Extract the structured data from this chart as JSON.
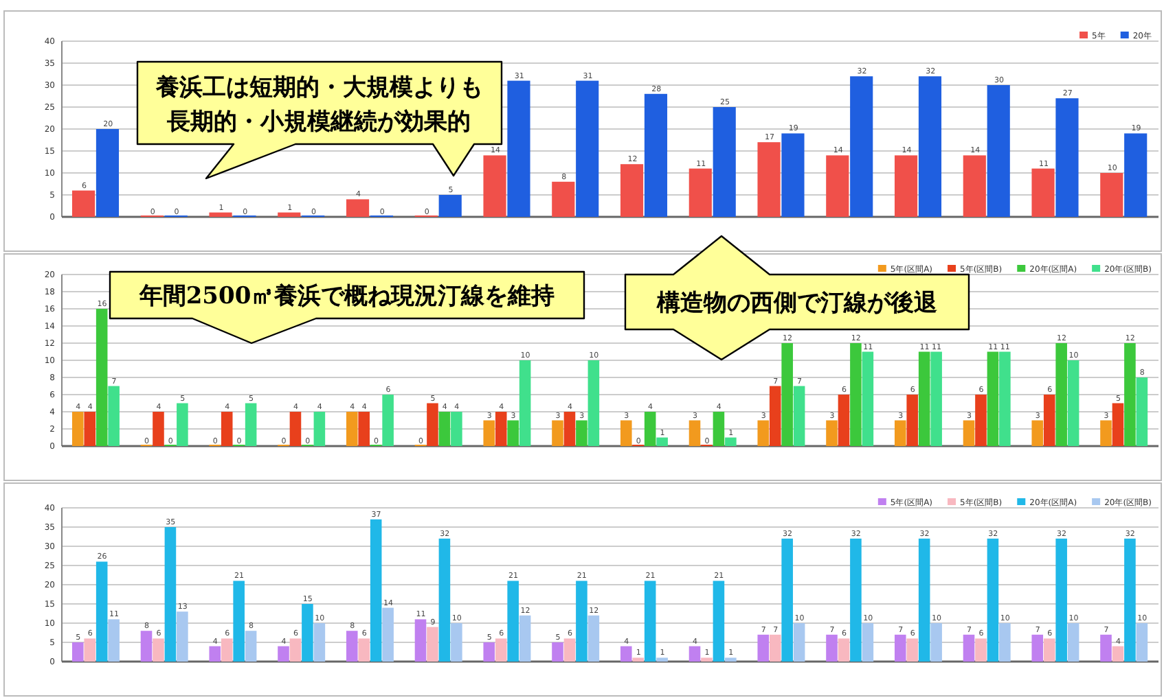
{
  "chart_data": [
    {
      "type": "bar",
      "categories": [
        null,
        null,
        null,
        null,
        null,
        null,
        null,
        null,
        null,
        null,
        null,
        null,
        null,
        null,
        null,
        null
      ],
      "ylim": [
        0,
        40
      ],
      "yticks": [
        0,
        5,
        10,
        15,
        20,
        25,
        30,
        35,
        40
      ],
      "grid": "y",
      "legend": "top right",
      "data_labels": true,
      "series": [
        {
          "name": "5年",
          "color": "#f0504a",
          "values": [
            6,
            0,
            1,
            1,
            4,
            0,
            14,
            8,
            12,
            11,
            17,
            14,
            14,
            14,
            11,
            10
          ]
        },
        {
          "name": "20年",
          "color": "#1f5fe0",
          "values": [
            20,
            0,
            0,
            0,
            0,
            5,
            31,
            31,
            28,
            25,
            19,
            32,
            32,
            30,
            27,
            19
          ]
        }
      ],
      "annotations": [
        "養浜工は短期的・大規模よりも",
        "長期的・小規模継続が効果的"
      ]
    },
    {
      "type": "bar",
      "categories": [
        null,
        null,
        null,
        null,
        null,
        null,
        null,
        null,
        null,
        null,
        null,
        null,
        null,
        null,
        null,
        null
      ],
      "ylim": [
        0,
        20
      ],
      "yticks": [
        0,
        2,
        4,
        6,
        8,
        10,
        12,
        14,
        16,
        18,
        20
      ],
      "grid": "y",
      "legend": "top right",
      "data_labels": true,
      "series": [
        {
          "name": "5年(区間A)",
          "color": "#f29a1e",
          "values": [
            4,
            0,
            0,
            0,
            4,
            0,
            3,
            3,
            3,
            3,
            3,
            3,
            3,
            3,
            3,
            3
          ]
        },
        {
          "name": "5年(区間B)",
          "color": "#e8401c",
          "values": [
            4,
            4,
            4,
            4,
            4,
            5,
            4,
            4,
            0,
            0,
            7,
            6,
            6,
            6,
            6,
            5
          ]
        },
        {
          "name": "20年(区間A)",
          "color": "#3cc83c",
          "values": [
            16,
            0,
            0,
            0,
            0,
            4,
            3,
            3,
            4,
            4,
            12,
            12,
            11,
            11,
            12,
            12
          ]
        },
        {
          "name": "20年(区間B)",
          "color": "#40e08c",
          "values": [
            7,
            5,
            5,
            4,
            6,
            4,
            10,
            10,
            1,
            1,
            7,
            11,
            11,
            11,
            10,
            8
          ]
        }
      ],
      "annotations": [
        "年間2500㎥養浜で概ね現況汀線を維持",
        "構造物の西側で汀線が後退"
      ]
    },
    {
      "type": "bar",
      "categories": [
        null,
        null,
        null,
        null,
        null,
        null,
        null,
        null,
        null,
        null,
        null,
        null,
        null,
        null,
        null,
        null
      ],
      "ylim": [
        0,
        40
      ],
      "yticks": [
        0,
        5,
        10,
        15,
        20,
        25,
        30,
        35,
        40
      ],
      "grid": "y",
      "legend": "top right",
      "data_labels": true,
      "series": [
        {
          "name": "5年(区間A)",
          "color": "#c080f0",
          "values": [
            5,
            8,
            4,
            4,
            8,
            11,
            5,
            5,
            4,
            4,
            7,
            7,
            7,
            7,
            7,
            7
          ]
        },
        {
          "name": "5年(区間B)",
          "color": "#f8b8c0",
          "values": [
            6,
            6,
            6,
            6,
            6,
            9,
            6,
            6,
            1,
            1,
            7,
            6,
            6,
            6,
            6,
            4
          ]
        },
        {
          "name": "20年(区間A)",
          "color": "#20b8e8",
          "values": [
            26,
            35,
            21,
            15,
            37,
            32,
            21,
            21,
            21,
            21,
            32,
            32,
            32,
            32,
            32,
            32
          ]
        },
        {
          "name": "20年(区間B)",
          "color": "#a8c8f0",
          "values": [
            11,
            13,
            8,
            10,
            14,
            10,
            12,
            12,
            1,
            1,
            10,
            10,
            10,
            10,
            10,
            10
          ]
        }
      ]
    }
  ]
}
